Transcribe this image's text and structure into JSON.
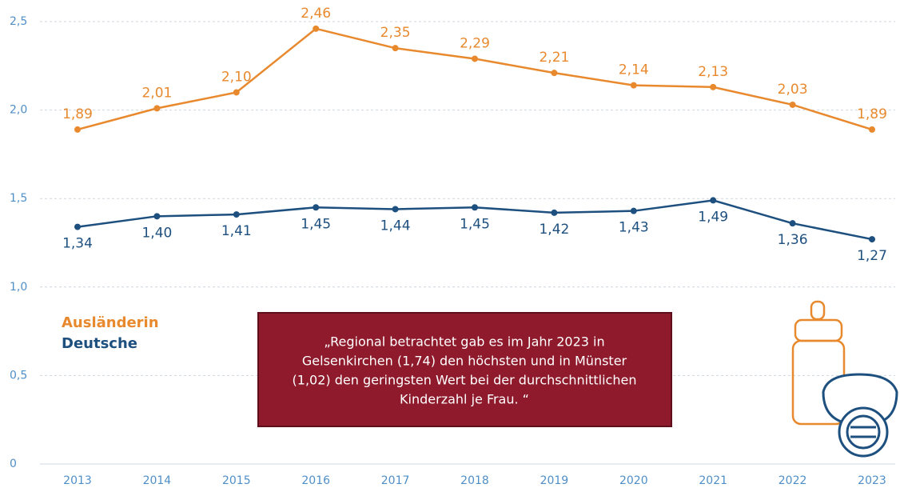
{
  "chart_data": {
    "type": "line",
    "categories": [
      "2013",
      "2014",
      "2015",
      "2016",
      "2017",
      "2018",
      "2019",
      "2020",
      "2021",
      "2022",
      "2023"
    ],
    "series": [
      {
        "name": "Ausländerin",
        "color": "#e8892e",
        "values": [
          1.89,
          2.01,
          2.1,
          2.46,
          2.35,
          2.29,
          2.21,
          2.14,
          2.13,
          2.03,
          1.89
        ],
        "value_labels": [
          "1,89",
          "2,01",
          "2,10",
          "2,46",
          "2,35",
          "2,29",
          "2,21",
          "2,14",
          "2,13",
          "2,03",
          "1,89"
        ]
      },
      {
        "name": "Deutsche",
        "color": "#1d4f7f",
        "values": [
          1.34,
          1.4,
          1.41,
          1.45,
          1.44,
          1.45,
          1.42,
          1.43,
          1.49,
          1.36,
          1.27
        ],
        "value_labels": [
          "1,34",
          "1,40",
          "1,41",
          "1,45",
          "1,44",
          "1,45",
          "1,42",
          "1,43",
          "1,49",
          "1,36",
          "1,27"
        ]
      }
    ],
    "ylim": [
      0,
      2.5
    ],
    "yticks": [
      0,
      {
        "value": 0.5,
        "label": "0,5"
      },
      {
        "value": 1.0,
        "label": "1,0"
      },
      {
        "value": 1.5,
        "label": "1,5"
      },
      {
        "value": 2.0,
        "label": "2,0"
      },
      {
        "value": 2.5,
        "label": "2,5"
      }
    ],
    "grid": true,
    "annotation": [
      "„Regional betrachtet gab es im Jahr 2023 in",
      "Gelsenkirchen (1,74) den höchsten und in Münster",
      "(1,02) den geringsten Wert bei der durchschnittlichen",
      "Kinderzahl je Frau. “"
    ]
  }
}
